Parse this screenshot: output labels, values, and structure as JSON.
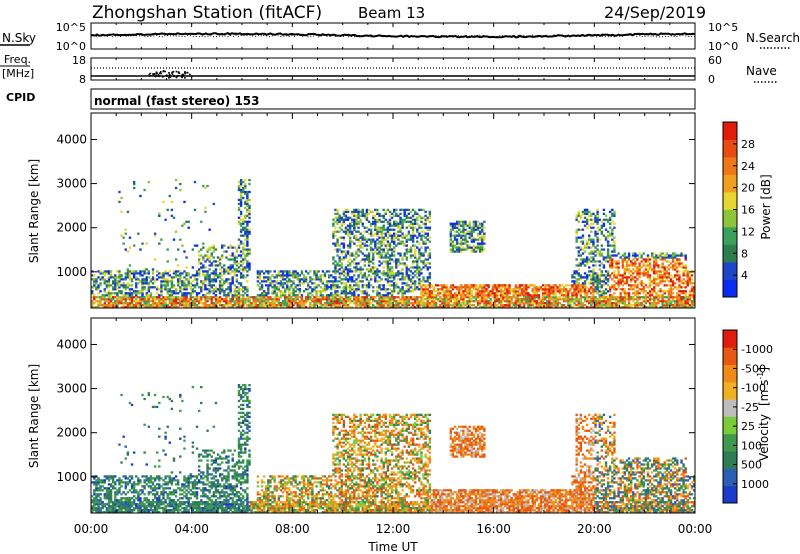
{
  "header": {
    "title": "Zhongshan Station (fitACF)",
    "beam": "Beam 13",
    "date": "24/Sep/2019"
  },
  "chart_data": [
    {
      "type": "line",
      "panel": "noise",
      "left_label": "N.Sky",
      "left_ticks": [
        "10^5",
        "10^0"
      ],
      "right_label": "N.Search",
      "right_ticks": [
        "10^5",
        "10^0"
      ]
    },
    {
      "type": "line",
      "panel": "frequency",
      "left_label_lines": [
        "Freq.",
        "[MHz]"
      ],
      "left_ticks": [
        "18",
        "8"
      ],
      "right_label": "Nave",
      "right_ticks": [
        "60",
        "0"
      ],
      "cpid_label": "CPID",
      "cpid_text": "normal (fast stereo) 153"
    },
    {
      "type": "heatmap",
      "panel": "power",
      "ylabel": "Slant Range [km]",
      "yticks": [
        1000,
        2000,
        3000,
        4000
      ],
      "ylim": [
        180,
        4600
      ],
      "colorbar_label": "Power [dB]",
      "colorbar_ticks": [
        "4",
        "8",
        "12",
        "16",
        "20",
        "24",
        "28"
      ],
      "colors": [
        "#0a2cf0",
        "#1e46c8",
        "#2e7d4f",
        "#3aa05a",
        "#8cc43c",
        "#e8d630",
        "#f0a020",
        "#f07818",
        "#e84c10",
        "#e01c0c"
      ]
    },
    {
      "type": "heatmap",
      "panel": "velocity",
      "ylabel": "Slant Range [km]",
      "yticks": [
        1000,
        2000,
        3000,
        4000
      ],
      "ylim": [
        180,
        4600
      ],
      "xlabel": "Time UT",
      "xticks": [
        "00:00",
        "04:00",
        "08:00",
        "12:00",
        "16:00",
        "20:00",
        "00:00"
      ],
      "colorbar_label": "Velocity",
      "colorbar_unit": "[m s",
      "colorbar_sup": "-1",
      "colorbar_close": "]",
      "colorbar_ticks": [
        "1000",
        "500",
        "100",
        "25",
        "-25",
        "-100",
        "-500",
        "-1000"
      ],
      "colors": [
        "#1a3cc8",
        "#2c5fb4",
        "#2e7d55",
        "#3f9a4e",
        "#7acc3a",
        "#bdbdbd",
        "#f0b020",
        "#f08a18",
        "#e85812",
        "#e01c0c"
      ]
    }
  ]
}
